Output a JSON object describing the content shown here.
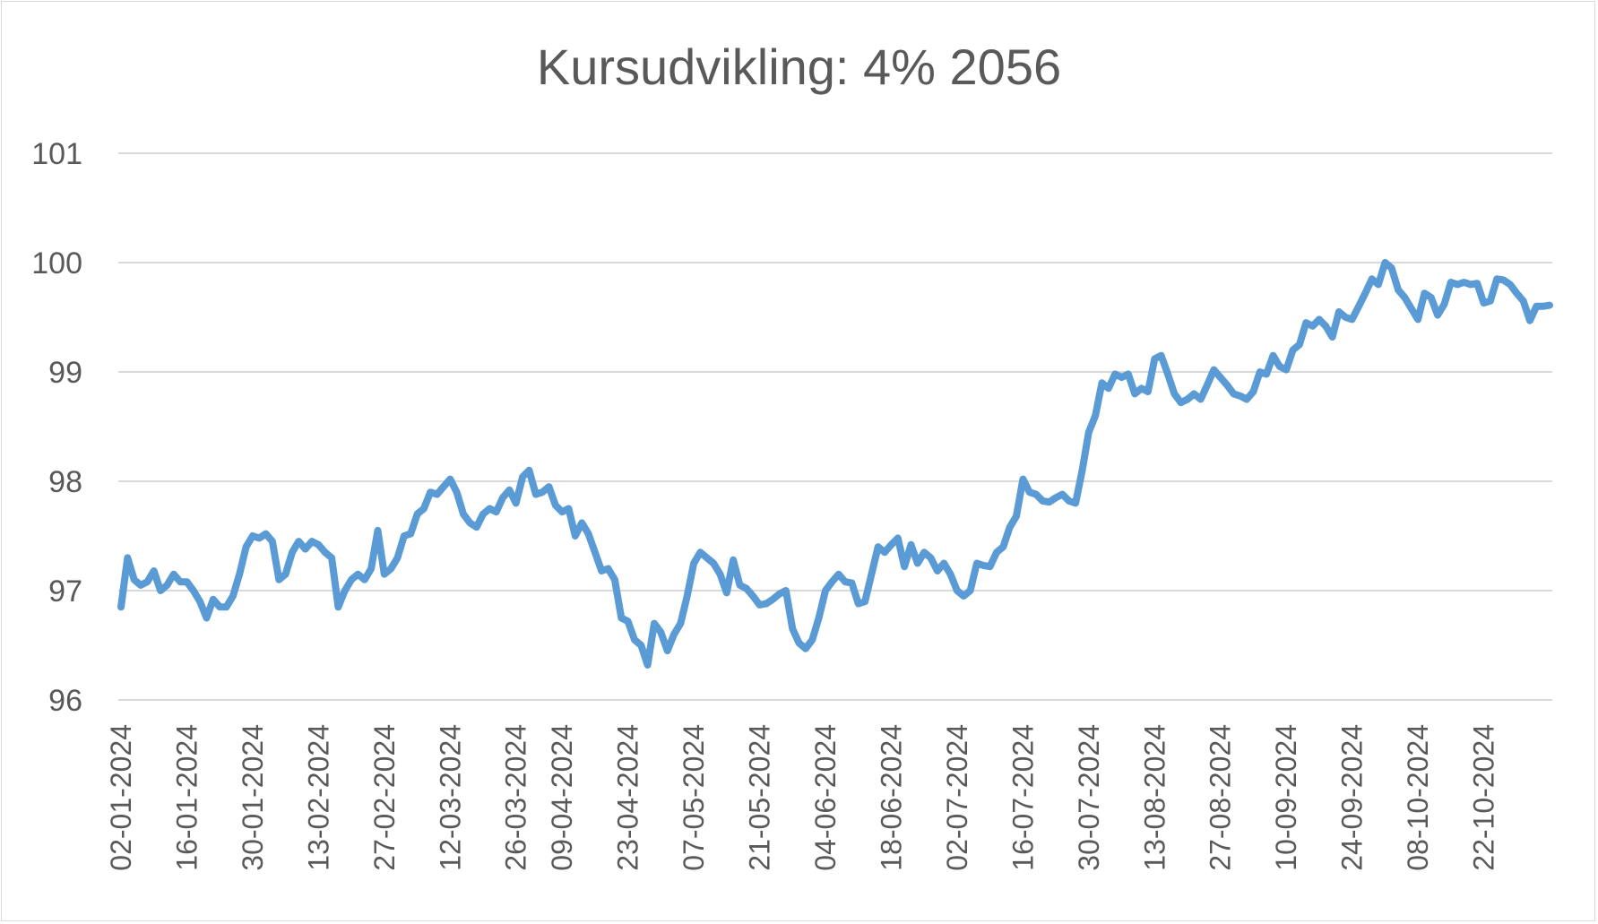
{
  "chart_data": {
    "type": "line",
    "title": "Kursudvikling: 4% 2056",
    "ylim": [
      96,
      101
    ],
    "yticks": [
      96,
      97,
      98,
      99,
      100,
      101
    ],
    "grid": true,
    "xtick_labels": [
      "02-01-2024",
      "16-01-2024",
      "30-01-2024",
      "13-02-2024",
      "27-02-2024",
      "12-03-2024",
      "26-03-2024",
      "09-04-2024",
      "23-04-2024",
      "07-05-2024",
      "21-05-2024",
      "04-06-2024",
      "18-06-2024",
      "02-07-2024",
      "16-07-2024",
      "30-07-2024",
      "13-08-2024",
      "27-08-2024",
      "10-09-2024",
      "24-09-2024",
      "08-10-2024",
      "22-10-2024"
    ],
    "series": [
      {
        "color": "#5b9bd5",
        "points": [
          [
            "2024-01-02",
            96.85
          ],
          [
            "2024-01-03",
            97.3
          ],
          [
            "2024-01-04",
            97.1
          ],
          [
            "2024-01-05",
            97.05
          ],
          [
            "2024-01-08",
            97.08
          ],
          [
            "2024-01-09",
            97.18
          ],
          [
            "2024-01-10",
            97.0
          ],
          [
            "2024-01-11",
            97.05
          ],
          [
            "2024-01-12",
            97.15
          ],
          [
            "2024-01-15",
            97.08
          ],
          [
            "2024-01-16",
            97.08
          ],
          [
            "2024-01-17",
            97.0
          ],
          [
            "2024-01-18",
            96.9
          ],
          [
            "2024-01-19",
            96.75
          ],
          [
            "2024-01-22",
            96.92
          ],
          [
            "2024-01-23",
            96.85
          ],
          [
            "2024-01-24",
            96.85
          ],
          [
            "2024-01-25",
            96.95
          ],
          [
            "2024-01-26",
            97.15
          ],
          [
            "2024-01-29",
            97.4
          ],
          [
            "2024-01-30",
            97.5
          ],
          [
            "2024-01-31",
            97.48
          ],
          [
            "2024-02-01",
            97.52
          ],
          [
            "2024-02-02",
            97.45
          ],
          [
            "2024-02-05",
            97.1
          ],
          [
            "2024-02-06",
            97.15
          ],
          [
            "2024-02-07",
            97.35
          ],
          [
            "2024-02-08",
            97.45
          ],
          [
            "2024-02-09",
            97.38
          ],
          [
            "2024-02-12",
            97.45
          ],
          [
            "2024-02-13",
            97.42
          ],
          [
            "2024-02-14",
            97.35
          ],
          [
            "2024-02-15",
            97.3
          ],
          [
            "2024-02-16",
            96.85
          ],
          [
            "2024-02-19",
            97.0
          ],
          [
            "2024-02-20",
            97.1
          ],
          [
            "2024-02-21",
            97.15
          ],
          [
            "2024-02-22",
            97.1
          ],
          [
            "2024-02-23",
            97.2
          ],
          [
            "2024-02-26",
            97.55
          ],
          [
            "2024-02-27",
            97.15
          ],
          [
            "2024-02-28",
            97.2
          ],
          [
            "2024-02-29",
            97.3
          ],
          [
            "2024-03-01",
            97.5
          ],
          [
            "2024-03-04",
            97.52
          ],
          [
            "2024-03-05",
            97.7
          ],
          [
            "2024-03-06",
            97.75
          ],
          [
            "2024-03-07",
            97.9
          ],
          [
            "2024-03-08",
            97.88
          ],
          [
            "2024-03-11",
            97.95
          ],
          [
            "2024-03-12",
            98.02
          ],
          [
            "2024-03-13",
            97.9
          ],
          [
            "2024-03-14",
            97.7
          ],
          [
            "2024-03-15",
            97.62
          ],
          [
            "2024-03-18",
            97.58
          ],
          [
            "2024-03-19",
            97.7
          ],
          [
            "2024-03-20",
            97.75
          ],
          [
            "2024-03-21",
            97.72
          ],
          [
            "2024-03-22",
            97.85
          ],
          [
            "2024-03-25",
            97.92
          ],
          [
            "2024-03-26",
            97.8
          ],
          [
            "2024-03-27",
            98.04
          ],
          [
            "2024-04-02",
            98.1
          ],
          [
            "2024-04-03",
            97.88
          ],
          [
            "2024-04-04",
            97.9
          ],
          [
            "2024-04-05",
            97.95
          ],
          [
            "2024-04-08",
            97.78
          ],
          [
            "2024-04-09",
            97.72
          ],
          [
            "2024-04-10",
            97.75
          ],
          [
            "2024-04-11",
            97.5
          ],
          [
            "2024-04-12",
            97.62
          ],
          [
            "2024-04-15",
            97.52
          ],
          [
            "2024-04-16",
            97.35
          ],
          [
            "2024-04-17",
            97.18
          ],
          [
            "2024-04-18",
            97.2
          ],
          [
            "2024-04-19",
            97.1
          ],
          [
            "2024-04-22",
            96.75
          ],
          [
            "2024-04-23",
            96.72
          ],
          [
            "2024-04-24",
            96.55
          ],
          [
            "2024-04-25",
            96.5
          ],
          [
            "2024-04-26",
            96.32
          ],
          [
            "2024-04-29",
            96.7
          ],
          [
            "2024-04-30",
            96.62
          ],
          [
            "2024-05-01",
            96.45
          ],
          [
            "2024-05-02",
            96.6
          ],
          [
            "2024-05-03",
            96.7
          ],
          [
            "2024-05-06",
            96.95
          ],
          [
            "2024-05-07",
            97.25
          ],
          [
            "2024-05-08",
            97.35
          ],
          [
            "2024-05-09",
            97.3
          ],
          [
            "2024-05-10",
            97.25
          ],
          [
            "2024-05-13",
            97.15
          ],
          [
            "2024-05-14",
            96.98
          ],
          [
            "2024-05-15",
            97.28
          ],
          [
            "2024-05-16",
            97.05
          ],
          [
            "2024-05-17",
            97.02
          ],
          [
            "2024-05-20",
            96.95
          ],
          [
            "2024-05-21",
            96.87
          ],
          [
            "2024-05-22",
            96.88
          ],
          [
            "2024-05-23",
            96.92
          ],
          [
            "2024-05-24",
            96.97
          ],
          [
            "2024-05-27",
            97.0
          ],
          [
            "2024-05-28",
            96.65
          ],
          [
            "2024-05-29",
            96.52
          ],
          [
            "2024-05-30",
            96.47
          ],
          [
            "2024-05-31",
            96.55
          ],
          [
            "2024-06-03",
            96.75
          ],
          [
            "2024-06-04",
            97.0
          ],
          [
            "2024-06-05",
            97.08
          ],
          [
            "2024-06-06",
            97.15
          ],
          [
            "2024-06-07",
            97.08
          ],
          [
            "2024-06-10",
            97.07
          ],
          [
            "2024-06-11",
            96.88
          ],
          [
            "2024-06-12",
            96.9
          ],
          [
            "2024-06-13",
            97.15
          ],
          [
            "2024-06-14",
            97.4
          ],
          [
            "2024-06-17",
            97.35
          ],
          [
            "2024-06-18",
            97.42
          ],
          [
            "2024-06-19",
            97.48
          ],
          [
            "2024-06-20",
            97.22
          ],
          [
            "2024-06-21",
            97.42
          ],
          [
            "2024-06-24",
            97.25
          ],
          [
            "2024-06-25",
            97.35
          ],
          [
            "2024-06-26",
            97.3
          ],
          [
            "2024-06-27",
            97.18
          ],
          [
            "2024-06-28",
            97.25
          ],
          [
            "2024-07-01",
            97.15
          ],
          [
            "2024-07-02",
            97.0
          ],
          [
            "2024-07-03",
            96.95
          ],
          [
            "2024-07-04",
            97.0
          ],
          [
            "2024-07-05",
            97.25
          ],
          [
            "2024-07-08",
            97.23
          ],
          [
            "2024-07-09",
            97.22
          ],
          [
            "2024-07-10",
            97.35
          ],
          [
            "2024-07-11",
            97.4
          ],
          [
            "2024-07-12",
            97.58
          ],
          [
            "2024-07-15",
            97.68
          ],
          [
            "2024-07-16",
            98.02
          ],
          [
            "2024-07-17",
            97.9
          ],
          [
            "2024-07-18",
            97.88
          ],
          [
            "2024-07-19",
            97.82
          ],
          [
            "2024-07-22",
            97.81
          ],
          [
            "2024-07-23",
            97.85
          ],
          [
            "2024-07-24",
            97.88
          ],
          [
            "2024-07-25",
            97.82
          ],
          [
            "2024-07-26",
            97.8
          ],
          [
            "2024-07-29",
            98.1
          ],
          [
            "2024-07-30",
            98.45
          ],
          [
            "2024-07-31",
            98.6
          ],
          [
            "2024-08-01",
            98.9
          ],
          [
            "2024-08-02",
            98.85
          ],
          [
            "2024-08-05",
            98.98
          ],
          [
            "2024-08-06",
            98.95
          ],
          [
            "2024-08-07",
            98.98
          ],
          [
            "2024-08-08",
            98.8
          ],
          [
            "2024-08-09",
            98.85
          ],
          [
            "2024-08-12",
            98.82
          ],
          [
            "2024-08-13",
            99.12
          ],
          [
            "2024-08-14",
            99.15
          ],
          [
            "2024-08-15",
            98.98
          ],
          [
            "2024-08-16",
            98.8
          ],
          [
            "2024-08-19",
            98.72
          ],
          [
            "2024-08-20",
            98.75
          ],
          [
            "2024-08-21",
            98.8
          ],
          [
            "2024-08-22",
            98.75
          ],
          [
            "2024-08-23",
            98.88
          ],
          [
            "2024-08-26",
            99.02
          ],
          [
            "2024-08-27",
            98.95
          ],
          [
            "2024-08-28",
            98.88
          ],
          [
            "2024-08-29",
            98.8
          ],
          [
            "2024-08-30",
            98.78
          ],
          [
            "2024-09-02",
            98.75
          ],
          [
            "2024-09-03",
            98.82
          ],
          [
            "2024-09-04",
            99.0
          ],
          [
            "2024-09-05",
            98.98
          ],
          [
            "2024-09-06",
            99.15
          ],
          [
            "2024-09-09",
            99.05
          ],
          [
            "2024-09-10",
            99.02
          ],
          [
            "2024-09-11",
            99.2
          ],
          [
            "2024-09-12",
            99.25
          ],
          [
            "2024-09-13",
            99.45
          ],
          [
            "2024-09-16",
            99.42
          ],
          [
            "2024-09-17",
            99.48
          ],
          [
            "2024-09-18",
            99.42
          ],
          [
            "2024-09-19",
            99.32
          ],
          [
            "2024-09-20",
            99.55
          ],
          [
            "2024-09-23",
            99.5
          ],
          [
            "2024-09-24",
            99.48
          ],
          [
            "2024-09-25",
            99.6
          ],
          [
            "2024-09-26",
            99.72
          ],
          [
            "2024-09-27",
            99.85
          ],
          [
            "2024-09-30",
            99.8
          ],
          [
            "2024-10-01",
            100.0
          ],
          [
            "2024-10-02",
            99.95
          ],
          [
            "2024-10-03",
            99.75
          ],
          [
            "2024-10-04",
            99.68
          ],
          [
            "2024-10-07",
            99.58
          ],
          [
            "2024-10-08",
            99.48
          ],
          [
            "2024-10-09",
            99.72
          ],
          [
            "2024-10-10",
            99.68
          ],
          [
            "2024-10-11",
            99.52
          ],
          [
            "2024-10-14",
            99.62
          ],
          [
            "2024-10-15",
            99.82
          ],
          [
            "2024-10-16",
            99.8
          ],
          [
            "2024-10-17",
            99.82
          ],
          [
            "2024-10-18",
            99.8
          ],
          [
            "2024-10-21",
            99.81
          ],
          [
            "2024-10-22",
            99.63
          ],
          [
            "2024-10-23",
            99.65
          ],
          [
            "2024-10-24",
            99.85
          ],
          [
            "2024-10-25",
            99.84
          ],
          [
            "2024-10-28",
            99.8
          ],
          [
            "2024-10-29",
            99.72
          ],
          [
            "2024-10-30",
            99.65
          ],
          [
            "2024-10-31",
            99.47
          ],
          [
            "2024-11-01",
            99.6
          ],
          [
            "2024-11-04",
            99.6
          ],
          [
            "2024-11-05",
            99.61
          ]
        ]
      }
    ]
  }
}
